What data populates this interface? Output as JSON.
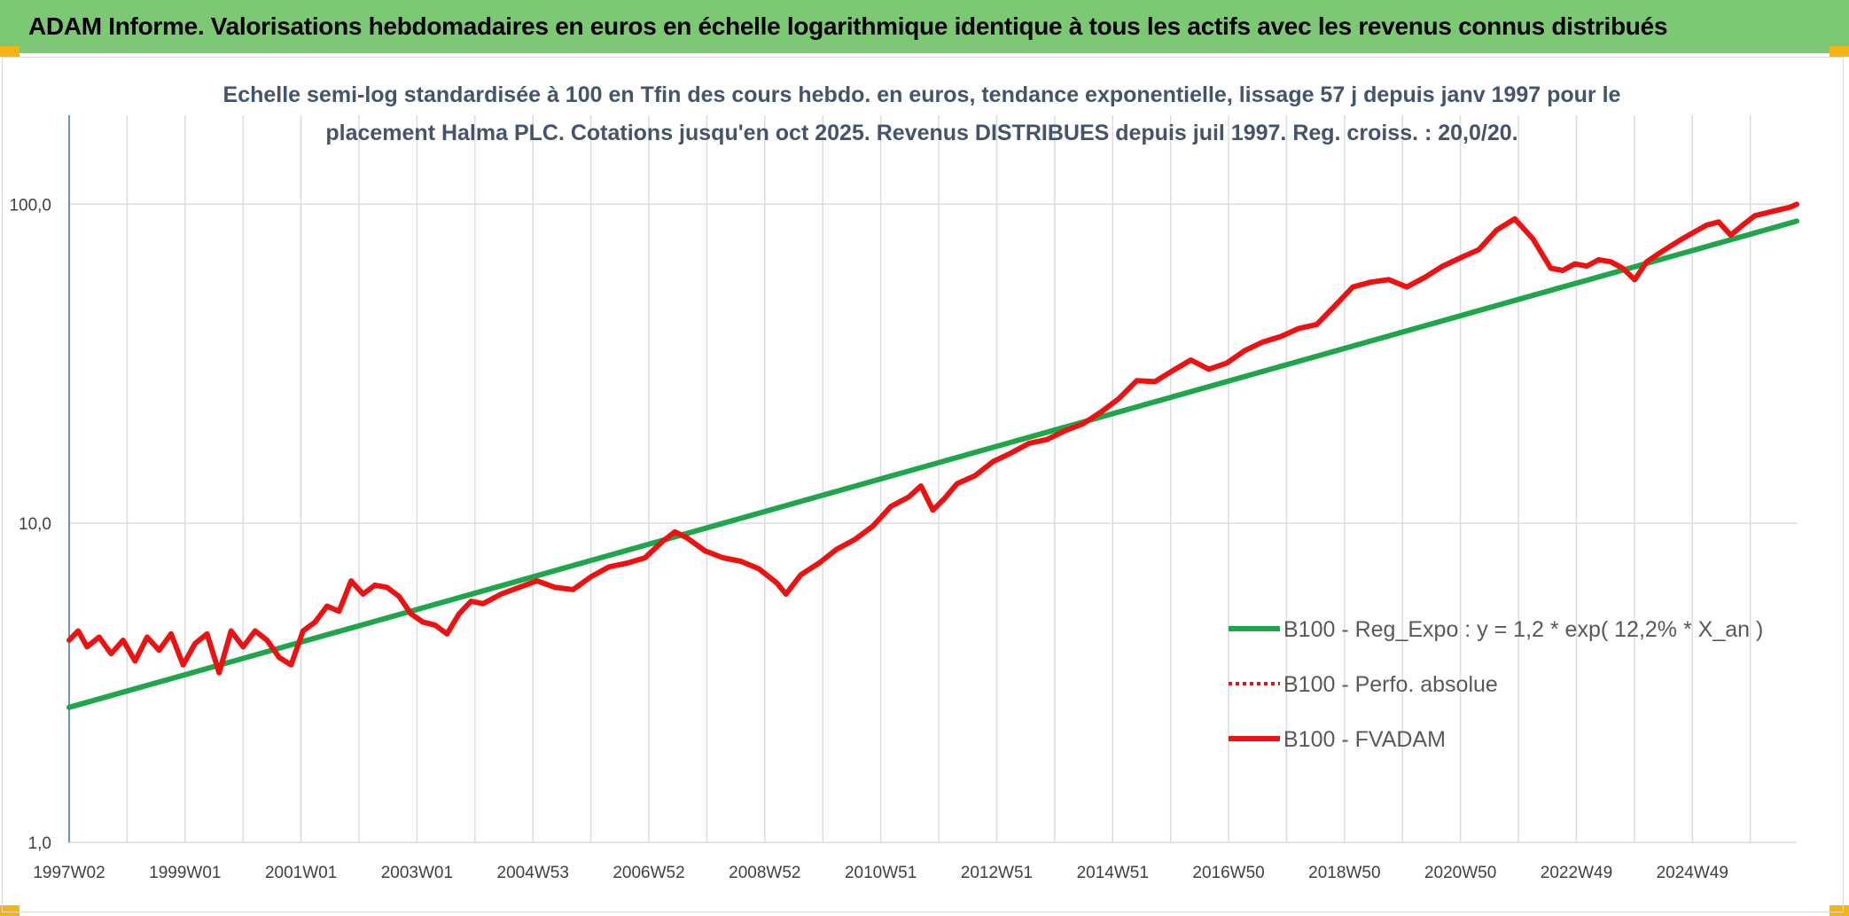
{
  "header": {
    "title": "ADAM Informe. Valorisations hebdomadaires en euros en échelle logarithmique identique à tous les actifs avec les revenus connus distribués"
  },
  "chart_data": {
    "type": "line",
    "title": "",
    "subtitle_lines": [
      "Echelle semi-log standardisée à 100 en Tfin des cours hebdo. en euros, tendance exponentielle, lissage 57 j depuis janv 1997 pour le",
      "placement Halma PLC. Cotations jusqu'en oct 2025. Revenus DISTRIBUES depuis juil 1997. Reg. croiss. : 20,0/20."
    ],
    "xlabel": "",
    "ylabel": "",
    "y_scale": "log",
    "ylim": [
      1,
      190
    ],
    "y_ticks": [
      "1,0",
      "10,0",
      "100,0"
    ],
    "x_tick_labels": [
      "1997W02",
      "1999W01",
      "2001W01",
      "2003W01",
      "2004W53",
      "2006W52",
      "2008W52",
      "2010W51",
      "2012W51",
      "2014W51",
      "2016W50",
      "2018W50",
      "2020W50",
      "2022W49",
      "2024W49"
    ],
    "xlim": [
      1997.0,
      2025.8
    ],
    "grid": "vertical and horizontal, light gray",
    "legend_position": "right, lower half",
    "colors": {
      "regression": "#1ea64a",
      "fvadam": "#ee1111",
      "perfo": "#ee1111",
      "axis": "#4472c4",
      "grid": "#d9dde3"
    },
    "series": [
      {
        "name": "B100 - Reg_Expo : y = 1,2 * exp( 12,2% *  X_an )",
        "style": "solid",
        "x": [
          1997.0,
          2025.8
        ],
        "values": [
          2.65,
          88.5
        ]
      },
      {
        "name": "B100 - Perfo. absolue",
        "style": "dotted",
        "x": [],
        "values": []
      },
      {
        "name": "B100 - FVADAM",
        "style": "solid",
        "x": [
          1997.0,
          1997.15,
          1997.3,
          1997.5,
          1997.7,
          1997.9,
          1998.1,
          1998.3,
          1998.5,
          1998.7,
          1998.9,
          1999.1,
          1999.3,
          1999.5,
          1999.7,
          1999.9,
          2000.1,
          2000.3,
          2000.5,
          2000.7,
          2000.9,
          2001.1,
          2001.3,
          2001.5,
          2001.7,
          2001.9,
          2002.1,
          2002.3,
          2002.5,
          2002.7,
          2002.9,
          2003.1,
          2003.3,
          2003.5,
          2003.7,
          2003.9,
          2004.2,
          2004.5,
          2004.8,
          2005.1,
          2005.4,
          2005.7,
          2006.0,
          2006.3,
          2006.6,
          2006.9,
          2007.1,
          2007.3,
          2007.6,
          2007.9,
          2008.2,
          2008.5,
          2008.8,
          2008.95,
          2009.2,
          2009.5,
          2009.8,
          2010.1,
          2010.4,
          2010.7,
          2011.0,
          2011.2,
          2011.4,
          2011.6,
          2011.8,
          2012.1,
          2012.4,
          2012.7,
          2013.0,
          2013.3,
          2013.6,
          2013.9,
          2014.2,
          2014.5,
          2014.8,
          2015.1,
          2015.4,
          2015.7,
          2016.0,
          2016.3,
          2016.6,
          2016.9,
          2017.2,
          2017.5,
          2017.8,
          2018.1,
          2018.4,
          2018.7,
          2019.0,
          2019.3,
          2019.6,
          2019.9,
          2020.2,
          2020.5,
          2020.8,
          2021.1,
          2021.4,
          2021.7,
          2021.9,
          2022.1,
          2022.3,
          2022.5,
          2022.7,
          2022.9,
          2023.1,
          2023.3,
          2023.5,
          2023.7,
          2023.9,
          2024.1,
          2024.3,
          2024.5,
          2024.7,
          2024.9,
          2025.1,
          2025.3,
          2025.5,
          2025.7,
          2025.8
        ],
        "values": [
          4.3,
          4.6,
          4.1,
          4.4,
          3.9,
          4.3,
          3.7,
          4.4,
          4.0,
          4.5,
          3.6,
          4.2,
          4.5,
          3.4,
          4.6,
          4.1,
          4.6,
          4.3,
          3.8,
          3.6,
          4.6,
          4.9,
          5.5,
          5.3,
          6.6,
          6.0,
          6.4,
          6.3,
          5.9,
          5.2,
          4.9,
          4.8,
          4.5,
          5.2,
          5.7,
          5.6,
          6.0,
          6.3,
          6.6,
          6.3,
          6.2,
          6.8,
          7.3,
          7.5,
          7.8,
          8.8,
          9.4,
          9.0,
          8.2,
          7.8,
          7.6,
          7.2,
          6.5,
          6.0,
          6.9,
          7.5,
          8.3,
          8.9,
          9.8,
          11.3,
          12.1,
          13.1,
          11.0,
          12.0,
          13.3,
          14.1,
          15.6,
          16.6,
          17.8,
          18.3,
          19.5,
          20.5,
          22.3,
          24.6,
          28.0,
          27.8,
          30.1,
          32.5,
          30.4,
          31.8,
          34.8,
          37.0,
          38.5,
          40.8,
          42.0,
          48.0,
          55.0,
          57.0,
          58.0,
          55.0,
          59.0,
          64.0,
          68.0,
          72.0,
          83.0,
          90.0,
          78.0,
          63.0,
          62.0,
          65.0,
          64.0,
          67.0,
          66.0,
          63.0,
          58.0,
          66.0,
          70.0,
          74.0,
          78.0,
          82.0,
          86.0,
          88.0,
          80.0,
          86.0,
          92.0,
          94.0,
          96.0,
          98.0,
          100.0
        ]
      }
    ]
  }
}
